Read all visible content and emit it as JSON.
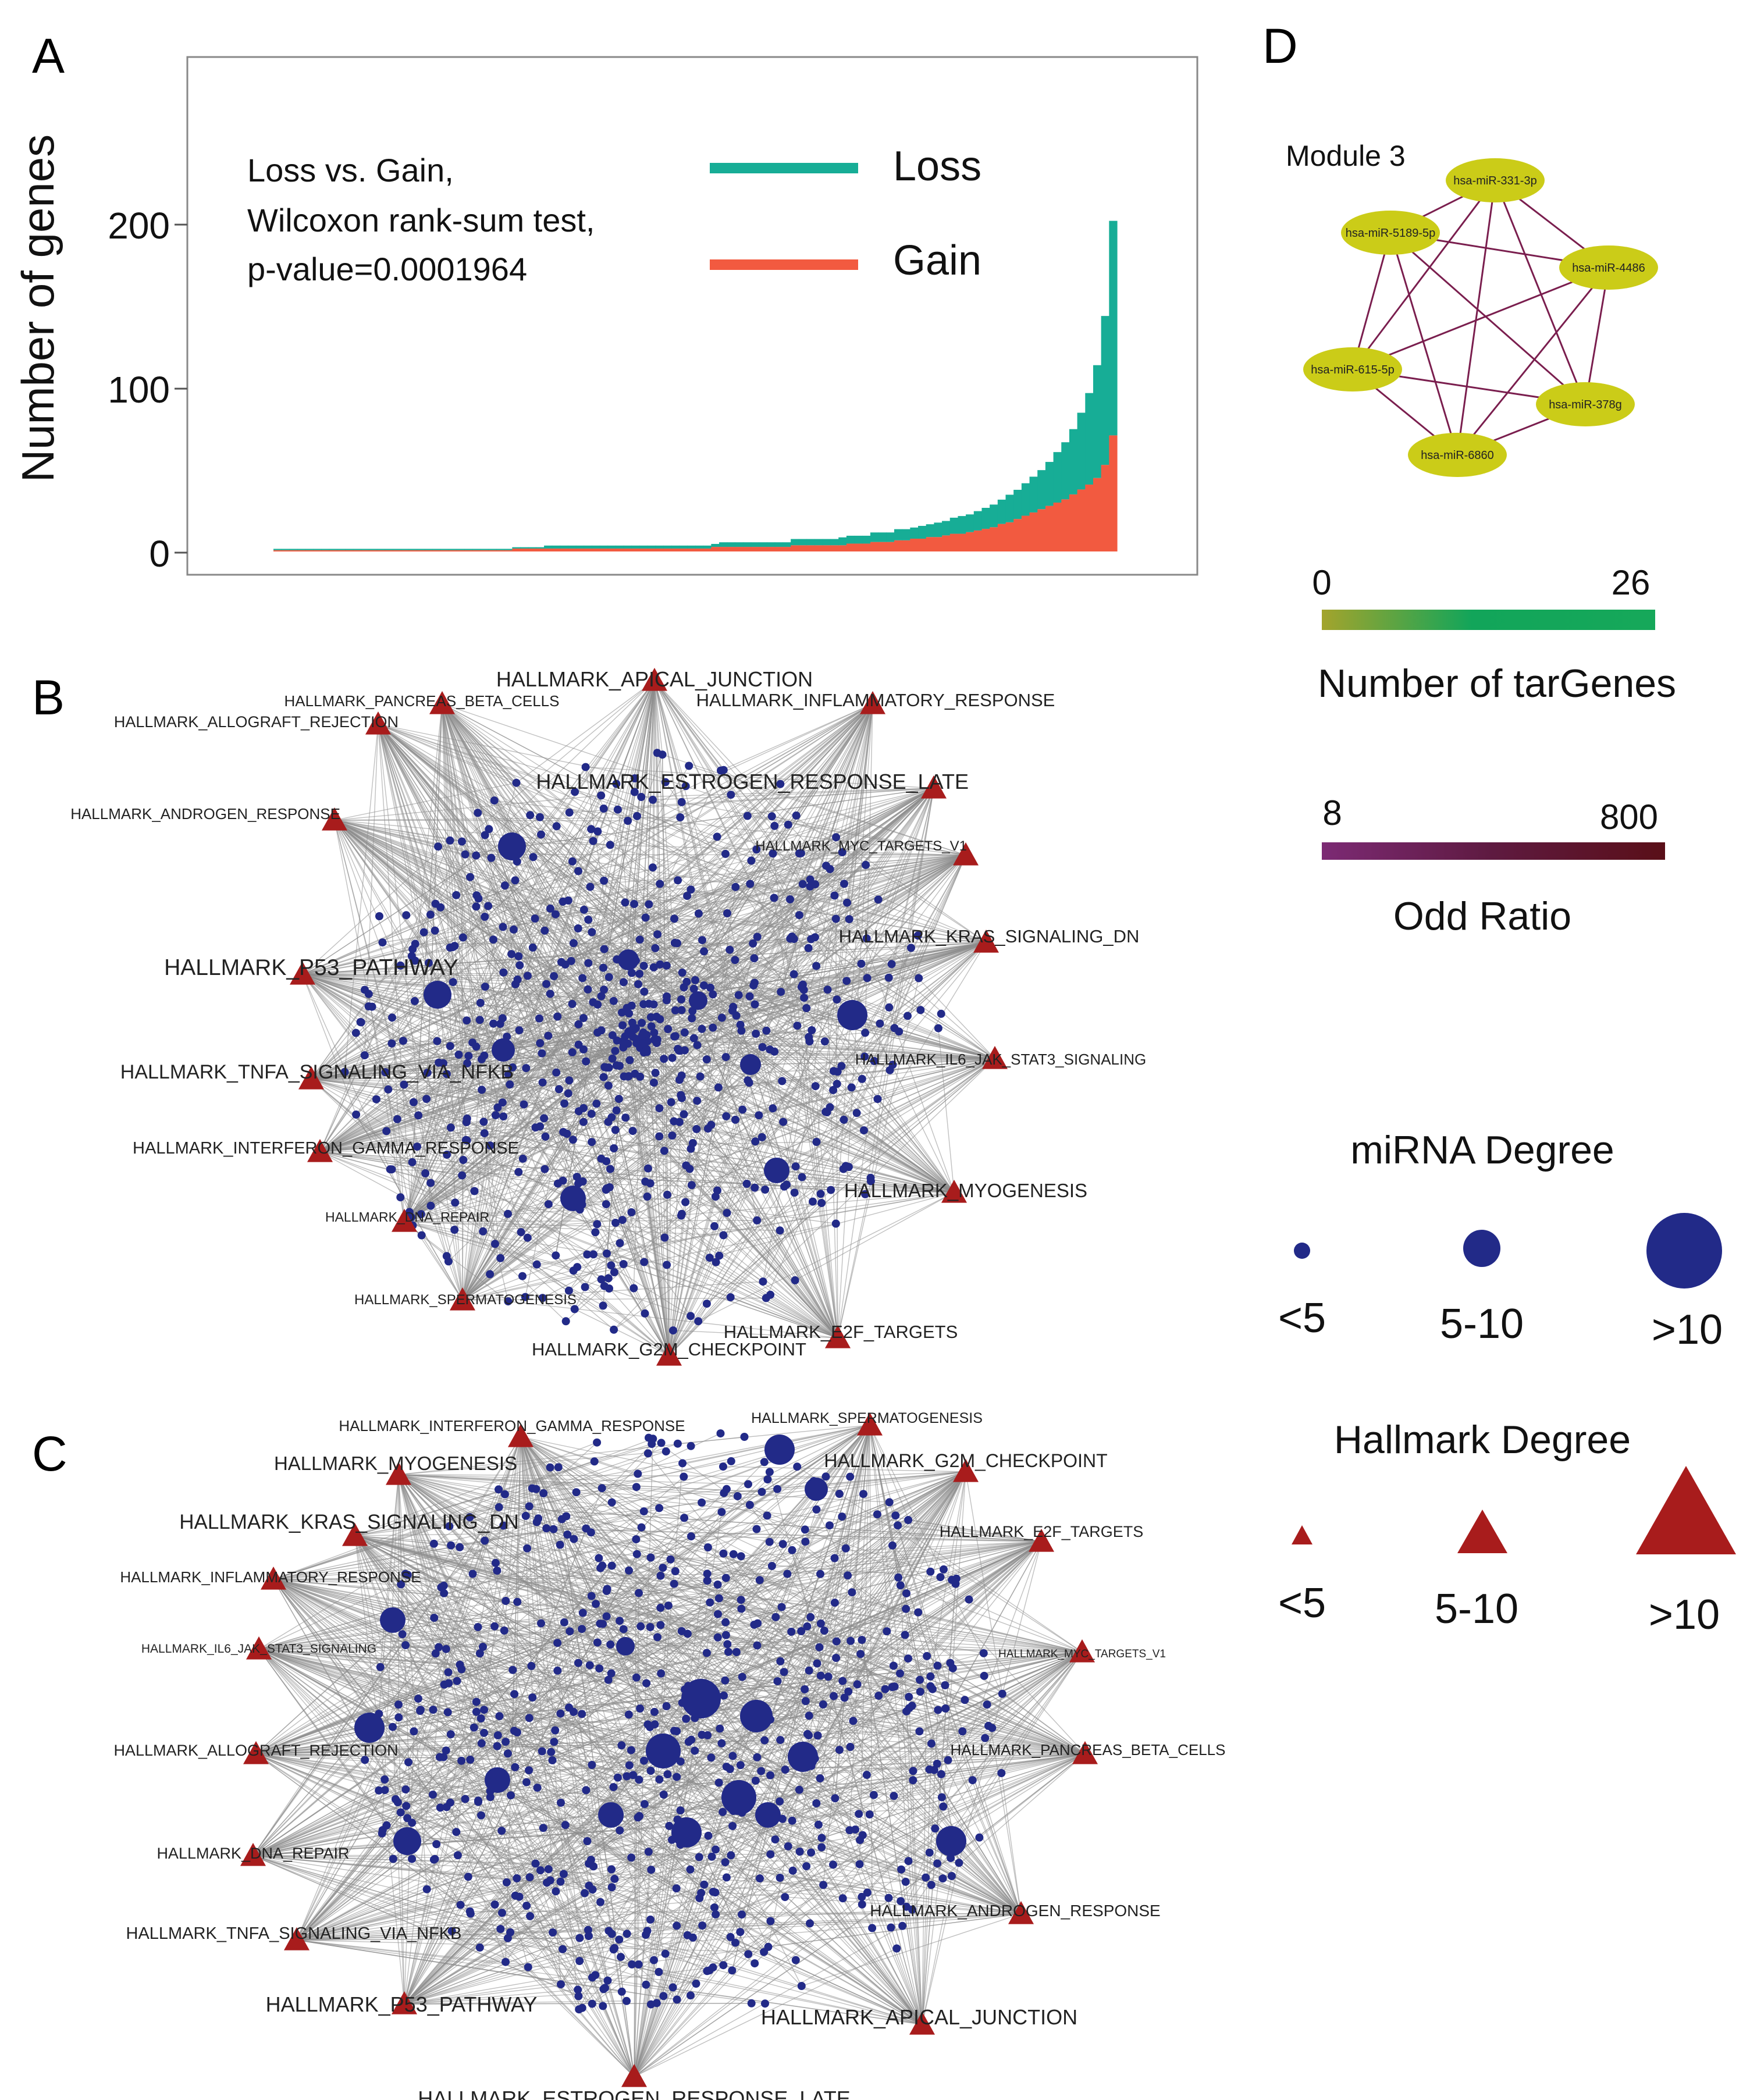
{
  "panels": {
    "A": "A",
    "B": "B",
    "C": "C",
    "D": "D"
  },
  "chart_data": [
    {
      "type": "bar",
      "panel": "A",
      "stacked": true,
      "title": "",
      "xlabel": "",
      "ylabel": "Number of genes",
      "ylim": [
        0,
        265
      ],
      "yticks": [
        0,
        100,
        200
      ],
      "annotation": [
        "Loss vs. Gain,",
        "Wilcoxon rank-sum test,",
        "p-value=0.0001964"
      ],
      "legend": {
        "position": "top-center",
        "entries": [
          {
            "name": "Loss",
            "color": "#17ad96"
          },
          {
            "name": "Gain",
            "color": "#f25a40"
          }
        ]
      },
      "series": [
        {
          "name": "Loss",
          "color": "#17ad96",
          "values": [
            0,
            0,
            0,
            0,
            0,
            0,
            0,
            0,
            0,
            0,
            0,
            0,
            0,
            0,
            0,
            0,
            0,
            0,
            0,
            0,
            0,
            0,
            0,
            0,
            0,
            0,
            0,
            0,
            0,
            0,
            0,
            0,
            0,
            0,
            1,
            1,
            1,
            1,
            1,
            1,
            1,
            1,
            1,
            1,
            1,
            1,
            1,
            1,
            1,
            1,
            1,
            1,
            1,
            1,
            1,
            1,
            2,
            2,
            2,
            2,
            2,
            2,
            2,
            2,
            2,
            3,
            3,
            3,
            3,
            3,
            3,
            4,
            4,
            4,
            4,
            5,
            5,
            5,
            6,
            6,
            6,
            7,
            7,
            8,
            8,
            9,
            10,
            10,
            11,
            12,
            13,
            14,
            16,
            17,
            19,
            21,
            23,
            26,
            30,
            34,
            39,
            46,
            55,
            68,
            90,
            130
          ]
        },
        {
          "name": "Gain",
          "color": "#f25a40",
          "values": [
            0,
            0,
            0,
            0,
            0,
            0,
            0,
            0,
            0,
            0,
            0,
            0,
            0,
            0,
            0,
            0,
            0,
            0,
            0,
            0,
            0,
            0,
            0,
            0,
            0,
            0,
            0,
            0,
            0,
            0,
            1,
            1,
            1,
            1,
            1,
            1,
            1,
            1,
            1,
            1,
            1,
            1,
            1,
            1,
            1,
            1,
            1,
            1,
            1,
            1,
            1,
            1,
            1,
            1,
            1,
            2,
            2,
            2,
            2,
            2,
            2,
            2,
            2,
            2,
            2,
            3,
            3,
            3,
            3,
            3,
            3,
            3,
            4,
            4,
            4,
            5,
            5,
            5,
            6,
            6,
            7,
            7,
            8,
            8,
            9,
            10,
            10,
            11,
            12,
            13,
            14,
            16,
            17,
            19,
            21,
            23,
            25,
            27,
            29,
            31,
            34,
            37,
            40,
            44,
            52,
            70
          ]
        }
      ]
    },
    {
      "type": "network",
      "panel": "B",
      "node_types": [
        {
          "name": "miRNA",
          "shape": "circle",
          "color": "#222a88"
        },
        {
          "name": "Hallmark",
          "shape": "triangle",
          "color": "#a81c1c"
        }
      ],
      "hallmarks": [
        "HALLMARK_APICAL_JUNCTION",
        "HALLMARK_PANCREAS_BETA_CELLS",
        "HALLMARK_INFLAMMATORY_RESPONSE",
        "HALLMARK_ALLOGRAFT_REJECTION",
        "HALLMARK_ESTROGEN_RESPONSE_LATE",
        "HALLMARK_ANDROGEN_RESPONSE",
        "HALLMARK_MYC_TARGETS_V1",
        "HALLMARK_KRAS_SIGNALING_DN",
        "HALLMARK_P53_PATHWAY",
        "HALLMARK_IL6_JAK_STAT3_SIGNALING",
        "HALLMARK_TNFA_SIGNALING_VIA_NFKB",
        "HALLMARK_INTERFERON_GAMMA_RESPONSE",
        "HALLMARK_MYOGENESIS",
        "HALLMARK_DNA_REPAIR",
        "HALLMARK_SPERMATOGENESIS",
        "HALLMARK_E2F_TARGETS",
        "HALLMARK_G2M_CHECKPOINT"
      ]
    },
    {
      "type": "network",
      "panel": "C",
      "node_types": [
        {
          "name": "miRNA",
          "shape": "circle",
          "color": "#222a88"
        },
        {
          "name": "Hallmark",
          "shape": "triangle",
          "color": "#a81c1c"
        }
      ],
      "hallmarks": [
        "HALLMARK_INTERFERON_GAMMA_RESPONSE",
        "HALLMARK_SPERMATOGENESIS",
        "HALLMARK_MYOGENESIS",
        "HALLMARK_G2M_CHECKPOINT",
        "HALLMARK_KRAS_SIGNALING_DN",
        "HALLMARK_E2F_TARGETS",
        "HALLMARK_INFLAMMATORY_RESPONSE",
        "HALLMARK_IL6_JAK_STAT3_SIGNALING",
        "HALLMARK_MYC_TARGETS_V1",
        "HALLMARK_ALLOGRAFT_REJECTION",
        "HALLMARK_PANCREAS_BETA_CELLS",
        "HALLMARK_DNA_REPAIR",
        "HALLMARK_ANDROGEN_RESPONSE",
        "HALLMARK_TNFA_SIGNALING_VIA_NFKB",
        "HALLMARK_P53_PATHWAY",
        "HALLMARK_APICAL_JUNCTION",
        "HALLMARK_ESTROGEN_RESPONSE_LATE"
      ]
    },
    {
      "type": "network",
      "panel": "D",
      "title": "Module 3",
      "nodes": [
        "hsa-miR-331-3p",
        "hsa-miR-5189-5p",
        "hsa-miR-4486",
        "hsa-miR-615-5p",
        "hsa-miR-378g",
        "hsa-miR-6860"
      ],
      "edges": [
        [
          0,
          1
        ],
        [
          0,
          2
        ],
        [
          0,
          3
        ],
        [
          0,
          4
        ],
        [
          0,
          5
        ],
        [
          1,
          2
        ],
        [
          1,
          3
        ],
        [
          1,
          4
        ],
        [
          1,
          5
        ],
        [
          2,
          3
        ],
        [
          2,
          4
        ],
        [
          2,
          5
        ],
        [
          3,
          4
        ],
        [
          3,
          5
        ],
        [
          4,
          5
        ]
      ]
    }
  ],
  "legend": {
    "targenes": {
      "title": "Number of tarGenes",
      "min": "0",
      "max": "26",
      "color_low": "#a3a42c",
      "color_high": "#12a55a"
    },
    "odds": {
      "title": "Odd Ratio",
      "min": "8",
      "max": "800",
      "color_low": "#7c2a74",
      "color_high": "#5a0f18"
    },
    "mirna_degree": {
      "title": "miRNA Degree",
      "labels": [
        "<5",
        "5-10",
        ">10"
      ]
    },
    "hallmark_degree": {
      "title": "Hallmark Degree",
      "labels": [
        "<5",
        "5-10",
        ">10"
      ]
    }
  },
  "colors": {
    "mirna": "#222a88",
    "hallmark": "#a81c1c",
    "edge_gray": "#8c8c8c",
    "module_node": "#cbcc18",
    "module_edge": "#7a1e4e"
  }
}
